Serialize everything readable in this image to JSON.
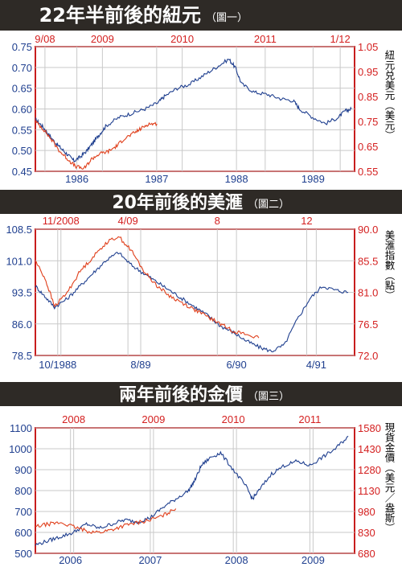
{
  "colors": {
    "banner": "#2e2a26",
    "primary": "#1f3f8f",
    "secondary": "#e0401c",
    "secondary_axis": "#d42020",
    "frame": "#c81e1e",
    "grid": "#c9c9c9"
  },
  "chart_data": [
    {
      "type": "line",
      "title": "22年半前後的紐元",
      "figure_label": "（圖一）",
      "ylabel_right": "紐元兑美元（美元）",
      "grid": true,
      "x_bottom_ticks": [
        "1986",
        "1987",
        "1988",
        "1989"
      ],
      "x_top_ticks": [
        "9/08",
        "2009",
        "2010",
        "2011",
        "1/12"
      ],
      "y_left_ticks": [
        "0.75",
        "0.70",
        "0.65",
        "0.60",
        "0.55",
        "0.50",
        "0.45"
      ],
      "y_right_ticks": [
        "1.05",
        "0.95",
        "0.85",
        "0.75",
        "0.65",
        "0.55"
      ],
      "ylim_left": [
        0.45,
        0.75
      ],
      "ylim_right": [
        0.55,
        1.05
      ],
      "series": [
        {
          "axis": "bottom-left",
          "x": [
            1985.0,
            1985.1,
            1985.2,
            1985.3,
            1985.4,
            1985.5,
            1985.6,
            1985.7,
            1985.8,
            1985.9,
            1986.0,
            1986.1,
            1986.3,
            1986.5,
            1986.7,
            1986.9,
            1987.0,
            1987.2,
            1987.4,
            1987.6,
            1987.8,
            1988.0,
            1988.1,
            1988.2,
            1988.4,
            1988.6,
            1988.8,
            1989.0,
            1989.1,
            1989.3,
            1989.5,
            1989.7,
            1989.8,
            1989.9
          ],
          "values": [
            0.575,
            0.56,
            0.54,
            0.52,
            0.505,
            0.49,
            0.475,
            0.485,
            0.5,
            0.52,
            0.54,
            0.56,
            0.58,
            0.59,
            0.6,
            0.615,
            0.63,
            0.65,
            0.66,
            0.68,
            0.7,
            0.72,
            0.7,
            0.66,
            0.64,
            0.635,
            0.625,
            0.62,
            0.6,
            0.58,
            0.565,
            0.58,
            0.595,
            0.6
          ]
        },
        {
          "axis": "top-right",
          "x": [
            2008.67,
            2008.75,
            2008.83,
            2008.92,
            2009.0,
            2009.08,
            2009.17,
            2009.25,
            2009.33,
            2009.42,
            2009.5,
            2009.58,
            2009.67,
            2009.75,
            2009.83,
            2009.92
          ],
          "values": [
            0.75,
            0.72,
            0.68,
            0.63,
            0.6,
            0.57,
            0.56,
            0.6,
            0.62,
            0.63,
            0.65,
            0.68,
            0.7,
            0.72,
            0.74,
            0.74
          ]
        }
      ]
    },
    {
      "type": "line",
      "title": "20年前後的美滙",
      "figure_label": "（圖二）",
      "ylabel_right": "美滙指數（點）",
      "grid": true,
      "x_bottom_ticks": [
        "10/1988",
        "8/89",
        "6/90",
        "4/91"
      ],
      "x_top_ticks": [
        "11/2008",
        "4/09",
        "8",
        "12"
      ],
      "y_left_ticks": [
        "108.5",
        "101.0",
        "93.5",
        "86.0",
        "78.5"
      ],
      "y_right_ticks": [
        "90.0",
        "85.5",
        "81.0",
        "76.5",
        "72.0"
      ],
      "ylim_left": [
        78.5,
        108.5
      ],
      "ylim_right": [
        72.0,
        90.0
      ],
      "series": [
        {
          "axis": "bottom-left",
          "x": [
            0,
            0.03,
            0.06,
            0.1,
            0.14,
            0.18,
            0.22,
            0.26,
            0.3,
            0.34,
            0.38,
            0.42,
            0.46,
            0.5,
            0.54,
            0.58,
            0.62,
            0.66,
            0.7,
            0.74,
            0.78,
            0.82,
            0.86,
            0.9,
            0.94,
            0.98
          ],
          "values": [
            95,
            92.5,
            90,
            92,
            95,
            98,
            101,
            103,
            100,
            98,
            96,
            94,
            92,
            90,
            88,
            85.5,
            84,
            82,
            80.5,
            79.5,
            81,
            87,
            92,
            95,
            94,
            93.5
          ]
        },
        {
          "axis": "top-right",
          "x": [
            0,
            0.03,
            0.06,
            0.1,
            0.14,
            0.18,
            0.22,
            0.26,
            0.3,
            0.34,
            0.38,
            0.42,
            0.46,
            0.5,
            0.54,
            0.58,
            0.62,
            0.66,
            0.7
          ],
          "values": [
            85.5,
            83,
            79,
            81,
            84,
            86,
            88,
            89,
            87,
            84,
            82,
            80.5,
            79.5,
            78.5,
            77.5,
            76.5,
            75.5,
            75,
            74.5
          ]
        }
      ]
    },
    {
      "type": "line",
      "title": "兩年前後的金價",
      "figure_label": "（圖三）",
      "ylabel_right": "現貨金價（美元／盎斯）",
      "grid": true,
      "x_bottom_ticks": [
        "2006",
        "2007",
        "2008",
        "2009"
      ],
      "x_top_ticks": [
        "2008",
        "2009",
        "2010",
        "2011"
      ],
      "y_left_ticks": [
        "1100",
        "1000",
        "900",
        "800",
        "700",
        "600",
        "500"
      ],
      "y_right_ticks": [
        "1580",
        "1430",
        "1280",
        "1130",
        "980",
        "830",
        "680"
      ],
      "ylim_left": [
        500,
        1100
      ],
      "ylim_right": [
        680,
        1580
      ],
      "series": [
        {
          "axis": "bottom-left",
          "x": [
            0,
            0.04,
            0.08,
            0.12,
            0.16,
            0.2,
            0.24,
            0.28,
            0.32,
            0.36,
            0.4,
            0.44,
            0.48,
            0.5,
            0.52,
            0.55,
            0.58,
            0.62,
            0.66,
            0.68,
            0.7,
            0.74,
            0.78,
            0.82,
            0.86,
            0.9,
            0.94,
            0.98
          ],
          "values": [
            540,
            560,
            580,
            600,
            640,
            620,
            640,
            660,
            650,
            670,
            720,
            760,
            800,
            850,
            920,
            960,
            980,
            900,
            820,
            760,
            800,
            880,
            920,
            940,
            920,
            960,
            1000,
            1060
          ]
        },
        {
          "axis": "top-right",
          "x": [
            0,
            0.04,
            0.08,
            0.12,
            0.16,
            0.2,
            0.24,
            0.28,
            0.32,
            0.36,
            0.4,
            0.44
          ],
          "values": [
            870,
            890,
            900,
            870,
            840,
            830,
            850,
            880,
            900,
            920,
            950,
            1000
          ]
        }
      ]
    }
  ]
}
